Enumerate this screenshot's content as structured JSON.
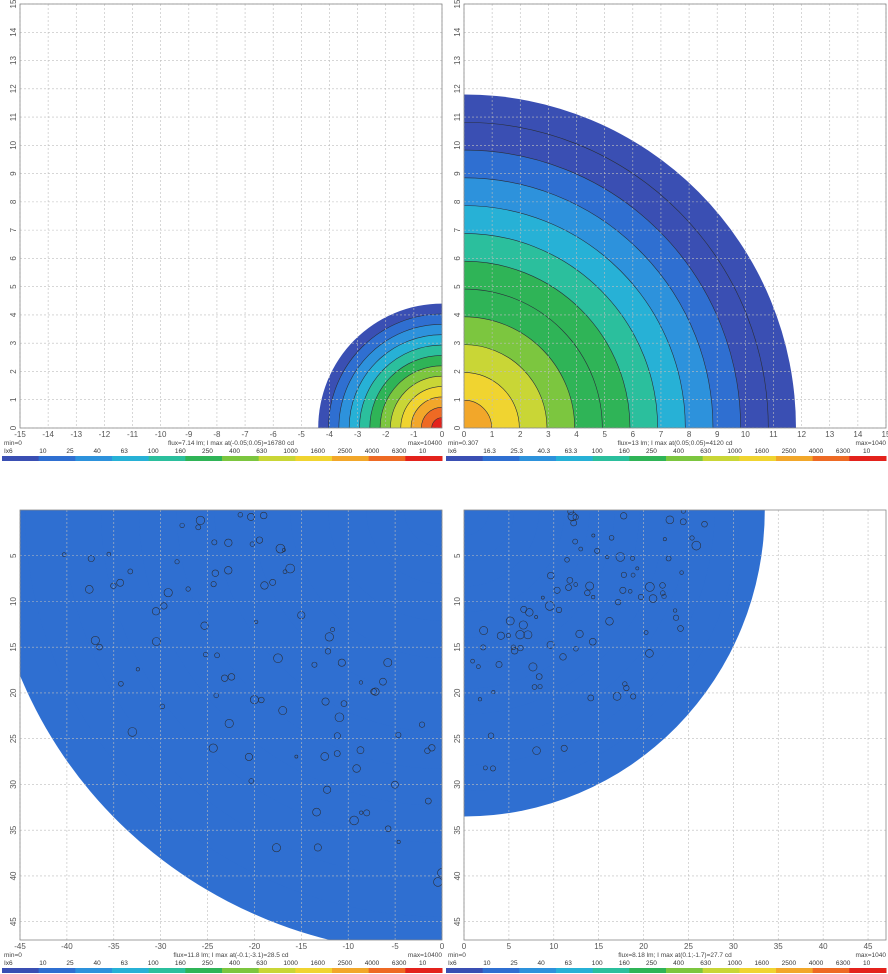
{
  "colors": {
    "grid": "#bdbdbd",
    "axis": "#888888",
    "contour": "#2a2f3a",
    "scale": [
      "#3a4fb3",
      "#2f6fd1",
      "#2d92dc",
      "#27b1d6",
      "#2bbf9d",
      "#2fb457",
      "#7cc63f",
      "#c9d636",
      "#f0d430",
      "#f2a72a",
      "#ee6a24",
      "#e3221c"
    ]
  },
  "chart_data": [
    {
      "type": "heatmap",
      "panel": "top-left",
      "x_ticks": [
        "-15",
        "-14",
        "-13",
        "-12",
        "-11",
        "-10",
        "-9",
        "-8",
        "-7",
        "-6",
        "-5",
        "-4",
        "-3",
        "-2",
        "-1",
        "0"
      ],
      "y_ticks": [
        "0",
        "1",
        "2",
        "3",
        "4",
        "5",
        "6",
        "7",
        "8",
        "9",
        "10",
        "11",
        "12",
        "13",
        "14",
        "15"
      ],
      "xlim": [
        -15,
        0
      ],
      "ylim": [
        0,
        15
      ],
      "grid": true,
      "spot": {
        "center": [
          0,
          0
        ],
        "radius": 4.4,
        "peak_level": 1.0
      },
      "min_text": "min=0",
      "flux_text": "flux=7.14 lm; I max at(-0.05;0.05)=16780 cd",
      "max_text": "max=10400",
      "legend": [
        "Ix6",
        "10",
        "25",
        "40",
        "63",
        "100",
        "160",
        "250",
        "400",
        "630",
        "1000",
        "1600",
        "2500",
        "4000",
        "6300",
        "10"
      ]
    },
    {
      "type": "heatmap",
      "panel": "top-right",
      "x_ticks": [
        "0",
        "1",
        "2",
        "3",
        "4",
        "5",
        "6",
        "7",
        "8",
        "9",
        "10",
        "11",
        "12",
        "13",
        "14",
        "15"
      ],
      "y_ticks": [
        "0",
        "1",
        "2",
        "3",
        "4",
        "5",
        "6",
        "7",
        "8",
        "9",
        "10",
        "11",
        "12",
        "13",
        "14",
        "15"
      ],
      "xlim": [
        0,
        15
      ],
      "ylim": [
        0,
        15
      ],
      "grid": true,
      "spot": {
        "center": [
          0,
          0
        ],
        "radius": 11.8,
        "peak_level": 0.78
      },
      "min_text": "min=0.307",
      "flux_text": "flux=13 lm; I max at(0.05;0.05)=4120 cd",
      "max_text": "max=1040",
      "legend": [
        "Ix6",
        "16.3",
        "25.3",
        "40.3",
        "63.3",
        "100",
        "160",
        "250",
        "400",
        "630",
        "1000",
        "1600",
        "2500",
        "4000",
        "6300",
        "10"
      ]
    },
    {
      "type": "heatmap",
      "panel": "bottom-left",
      "x_ticks": [
        "-45",
        "-40",
        "-35",
        "-30",
        "-25",
        "-20",
        "-15",
        "-10",
        "-5",
        "0"
      ],
      "y_ticks": [
        "5",
        "10",
        "15",
        "20",
        "25",
        "30",
        "35",
        "40",
        "45"
      ],
      "xlim": [
        -45,
        0
      ],
      "ylim": [
        0,
        47
      ],
      "grid": true,
      "spot": {
        "center": [
          0,
          0
        ],
        "radius": 48.5,
        "peak_level": 0.12
      },
      "min_text": "min=0",
      "flux_text": "flux=11.8 lm; I max at(-0.1;-3.1)=28.5 cd",
      "max_text": "max=10400",
      "legend": [
        "Ix6",
        "10",
        "25",
        "40",
        "63",
        "100",
        "160",
        "250",
        "400",
        "630",
        "1000",
        "1600",
        "2500",
        "4000",
        "6300",
        "10"
      ]
    },
    {
      "type": "heatmap",
      "panel": "bottom-right",
      "x_ticks": [
        "0",
        "5",
        "10",
        "15",
        "20",
        "25",
        "30",
        "35",
        "40",
        "45"
      ],
      "y_ticks": [
        "5",
        "10",
        "15",
        "20",
        "25",
        "30",
        "35",
        "40",
        "45"
      ],
      "xlim": [
        0,
        47
      ],
      "ylim": [
        0,
        47
      ],
      "grid": true,
      "spot": {
        "center": [
          0,
          0
        ],
        "radius": 33.5,
        "peak_level": 0.12
      },
      "min_text": "min=0",
      "flux_text": "flux=8.18 lm; I max at(0.1;-1.7)=27.7 cd",
      "max_text": "max=1040",
      "legend": [
        "Ix6",
        "10",
        "25",
        "40",
        "63",
        "100",
        "160",
        "250",
        "400",
        "630",
        "1000",
        "1600",
        "2500",
        "4000",
        "6300",
        "10"
      ]
    }
  ]
}
